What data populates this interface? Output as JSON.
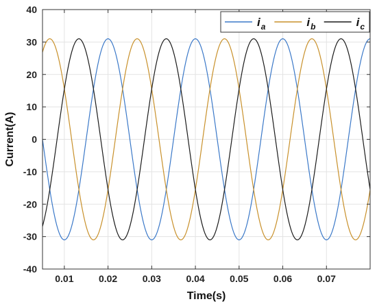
{
  "chart_data": {
    "type": "line",
    "title": "",
    "xlabel": "Time(s)",
    "ylabel": "Current(A)",
    "xlim": [
      0.005,
      0.08
    ],
    "ylim": [
      -40,
      40
    ],
    "xticks": [
      0.01,
      0.02,
      0.03,
      0.04,
      0.05,
      0.06,
      0.07
    ],
    "xtick_labels": [
      "0.01",
      "0.02",
      "0.03",
      "0.04",
      "0.05",
      "0.06",
      "0.07"
    ],
    "yticks": [
      -40,
      -30,
      -20,
      -10,
      0,
      10,
      20,
      30,
      40
    ],
    "ytick_labels": [
      "-40",
      "-30",
      "-20",
      "-10",
      "0",
      "10",
      "20",
      "30",
      "40"
    ],
    "grid": true,
    "legend_position": "top-right",
    "waveform": {
      "amplitude": 31,
      "frequency_hz": 50
    },
    "series": [
      {
        "name": "i",
        "subscript": "a",
        "color": "#3a78c8",
        "phase_deg": 0
      },
      {
        "name": "i",
        "subscript": "b",
        "color": "#c8902a",
        "phase_deg": -120
      },
      {
        "name": "i",
        "subscript": "c",
        "color": "#1a1a1a",
        "phase_deg": 120
      }
    ]
  }
}
